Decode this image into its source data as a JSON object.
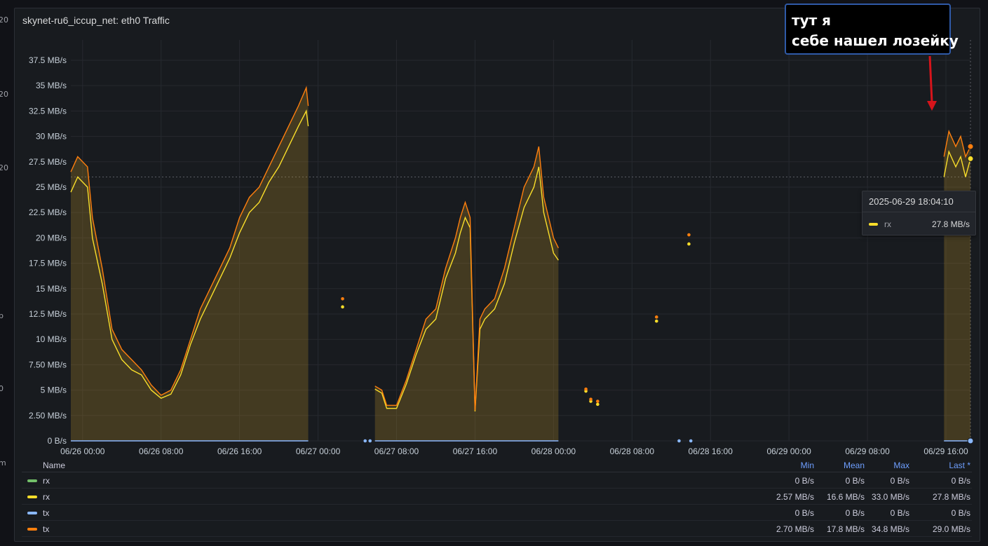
{
  "edge_fragments": [
    "20",
    "20",
    "20",
    "p",
    "0",
    "m"
  ],
  "panel": {
    "title": "skynet-ru6_iccup_net: eth0 Traffic"
  },
  "annotation": {
    "line1": "тут я",
    "line2": "себе нашел лозейку",
    "arrow_color": "#d6141b"
  },
  "tooltip": {
    "time": "2025-06-29 18:04:10",
    "series": "rx",
    "value": "27.8 MB/s",
    "color": "#fade2a"
  },
  "legend": {
    "headers": {
      "name": "Name",
      "min": "Min",
      "mean": "Mean",
      "max": "Max",
      "last": "Last *"
    },
    "rows": [
      {
        "name": "rx",
        "color": "#73bf69",
        "min": "0 B/s",
        "mean": "0 B/s",
        "max": "0 B/s",
        "last": "0 B/s"
      },
      {
        "name": "rx",
        "color": "#fade2a",
        "min": "2.57 MB/s",
        "mean": "16.6 MB/s",
        "max": "33.0 MB/s",
        "last": "27.8 MB/s"
      },
      {
        "name": "tx",
        "color": "#8ab8ff",
        "min": "0 B/s",
        "mean": "0 B/s",
        "max": "0 B/s",
        "last": "0 B/s"
      },
      {
        "name": "tx",
        "color": "#ff7f0e",
        "min": "2.70 MB/s",
        "mean": "17.8 MB/s",
        "max": "34.8 MB/s",
        "last": "29.0 MB/s"
      }
    ]
  },
  "chart_data": {
    "type": "area",
    "ylim": [
      0,
      39.5
    ],
    "y_ticks": [
      "0 B/s",
      "2.50 MB/s",
      "5 MB/s",
      "7.50 MB/s",
      "10 MB/s",
      "12.5 MB/s",
      "15 MB/s",
      "17.5 MB/s",
      "20 MB/s",
      "22.5 MB/s",
      "25 MB/s",
      "27.5 MB/s",
      "30 MB/s",
      "32.5 MB/s",
      "35 MB/s",
      "37.5 MB/s"
    ],
    "x_ticks": [
      "06/26 00:00",
      "06/26 08:00",
      "06/26 16:00",
      "06/27 00:00",
      "06/27 08:00",
      "06/27 16:00",
      "06/28 00:00",
      "06/28 08:00",
      "06/28 16:00",
      "06/29 00:00",
      "06/29 08:00",
      "06/29 16:00"
    ],
    "x_hours_range": [
      -1.2,
      90.5
    ],
    "grid": true,
    "series": [
      {
        "name": "tx",
        "color": "#ff7f0e",
        "segments": [
          [
            [
              -1.2,
              26.5
            ],
            [
              -0.5,
              28
            ],
            [
              0.5,
              27
            ],
            [
              1,
              22
            ],
            [
              2,
              17
            ],
            [
              3,
              11
            ],
            [
              4,
              9
            ],
            [
              5,
              8
            ],
            [
              6,
              7
            ],
            [
              7,
              5.5
            ],
            [
              8,
              4.5
            ],
            [
              9,
              5
            ],
            [
              10,
              7
            ],
            [
              11,
              10
            ],
            [
              12,
              13
            ],
            [
              13,
              15
            ],
            [
              14,
              17
            ],
            [
              15,
              19
            ],
            [
              16,
              22
            ],
            [
              17,
              24
            ],
            [
              18,
              25
            ],
            [
              19,
              27
            ],
            [
              20,
              29
            ],
            [
              21,
              31
            ],
            [
              22,
              33
            ],
            [
              22.8,
              34.8
            ],
            [
              23,
              33
            ]
          ],
          [
            [
              29.8,
              5.4
            ],
            [
              30.5,
              5
            ],
            [
              31,
              3.5
            ],
            [
              32,
              3.5
            ],
            [
              33,
              6
            ],
            [
              34,
              9
            ],
            [
              35,
              12
            ],
            [
              36,
              13
            ],
            [
              37,
              17
            ],
            [
              38,
              20
            ],
            [
              38.5,
              22
            ],
            [
              39,
              23.5
            ],
            [
              39.5,
              22
            ],
            [
              40,
              3
            ],
            [
              40.5,
              12
            ],
            [
              41,
              13
            ],
            [
              42,
              14
            ],
            [
              43,
              17
            ],
            [
              44,
              21
            ],
            [
              45,
              25
            ],
            [
              46,
              27
            ],
            [
              46.5,
              29
            ],
            [
              47,
              24
            ],
            [
              48,
              20
            ],
            [
              48.5,
              19
            ]
          ],
          [
            [
              87.8,
              28
            ],
            [
              88.3,
              30.5
            ],
            [
              89,
              29
            ],
            [
              89.5,
              30
            ],
            [
              90,
              28
            ],
            [
              90.5,
              29
            ]
          ]
        ],
        "points": [
          [
            26.5,
            14
          ],
          [
            51.3,
            5.1
          ],
          [
            51.8,
            4.1
          ],
          [
            52.5,
            3.9
          ],
          [
            58.5,
            12.2
          ],
          [
            61.8,
            20.3
          ]
        ]
      },
      {
        "name": "rx",
        "color": "#fade2a",
        "segments": [
          [
            [
              -1.2,
              24.5
            ],
            [
              -0.5,
              26
            ],
            [
              0.5,
              25
            ],
            [
              1,
              20
            ],
            [
              2,
              15.5
            ],
            [
              3,
              10
            ],
            [
              4,
              8
            ],
            [
              5,
              7
            ],
            [
              6,
              6.5
            ],
            [
              7,
              5
            ],
            [
              8,
              4.2
            ],
            [
              9,
              4.6
            ],
            [
              10,
              6.5
            ],
            [
              11,
              9.5
            ],
            [
              12,
              12
            ],
            [
              13,
              14
            ],
            [
              14,
              16
            ],
            [
              15,
              18
            ],
            [
              16,
              20.5
            ],
            [
              17,
              22.5
            ],
            [
              18,
              23.5
            ],
            [
              19,
              25.5
            ],
            [
              20,
              27
            ],
            [
              21,
              29
            ],
            [
              22,
              31
            ],
            [
              22.8,
              32.5
            ],
            [
              23,
              31
            ]
          ],
          [
            [
              29.8,
              5.1
            ],
            [
              30.5,
              4.7
            ],
            [
              31,
              3.2
            ],
            [
              32,
              3.2
            ],
            [
              33,
              5.6
            ],
            [
              34,
              8.5
            ],
            [
              35,
              11
            ],
            [
              36,
              12
            ],
            [
              37,
              16
            ],
            [
              38,
              18.5
            ],
            [
              38.5,
              20.5
            ],
            [
              39,
              22
            ],
            [
              39.5,
              21
            ],
            [
              40,
              2.9
            ],
            [
              40.5,
              11
            ],
            [
              41,
              12
            ],
            [
              42,
              13
            ],
            [
              43,
              15.5
            ],
            [
              44,
              19.5
            ],
            [
              45,
              23
            ],
            [
              46,
              25
            ],
            [
              46.5,
              27
            ],
            [
              47,
              22.5
            ],
            [
              48,
              18.5
            ],
            [
              48.5,
              17.8
            ]
          ],
          [
            [
              87.8,
              26
            ],
            [
              88.3,
              28.5
            ],
            [
              89,
              27
            ],
            [
              89.5,
              28
            ],
            [
              90,
              26
            ],
            [
              90.5,
              27.8
            ]
          ]
        ],
        "points": [
          [
            26.5,
            13.2
          ],
          [
            51.3,
            4.9
          ],
          [
            51.8,
            3.9
          ],
          [
            52.5,
            3.6
          ],
          [
            58.5,
            11.8
          ],
          [
            61.8,
            19.4
          ]
        ]
      },
      {
        "name": "tx",
        "color": "#8ab8ff",
        "segments": [
          [
            [
              -1.2,
              0
            ],
            [
              23,
              0
            ]
          ],
          [
            [
              29.8,
              0
            ],
            [
              48.5,
              0
            ]
          ],
          [
            [
              87.8,
              0
            ],
            [
              90.5,
              0
            ]
          ]
        ],
        "points": [
          [
            28.8,
            0
          ],
          [
            29.3,
            0
          ],
          [
            60.8,
            0
          ],
          [
            62,
            0
          ]
        ]
      }
    ]
  }
}
